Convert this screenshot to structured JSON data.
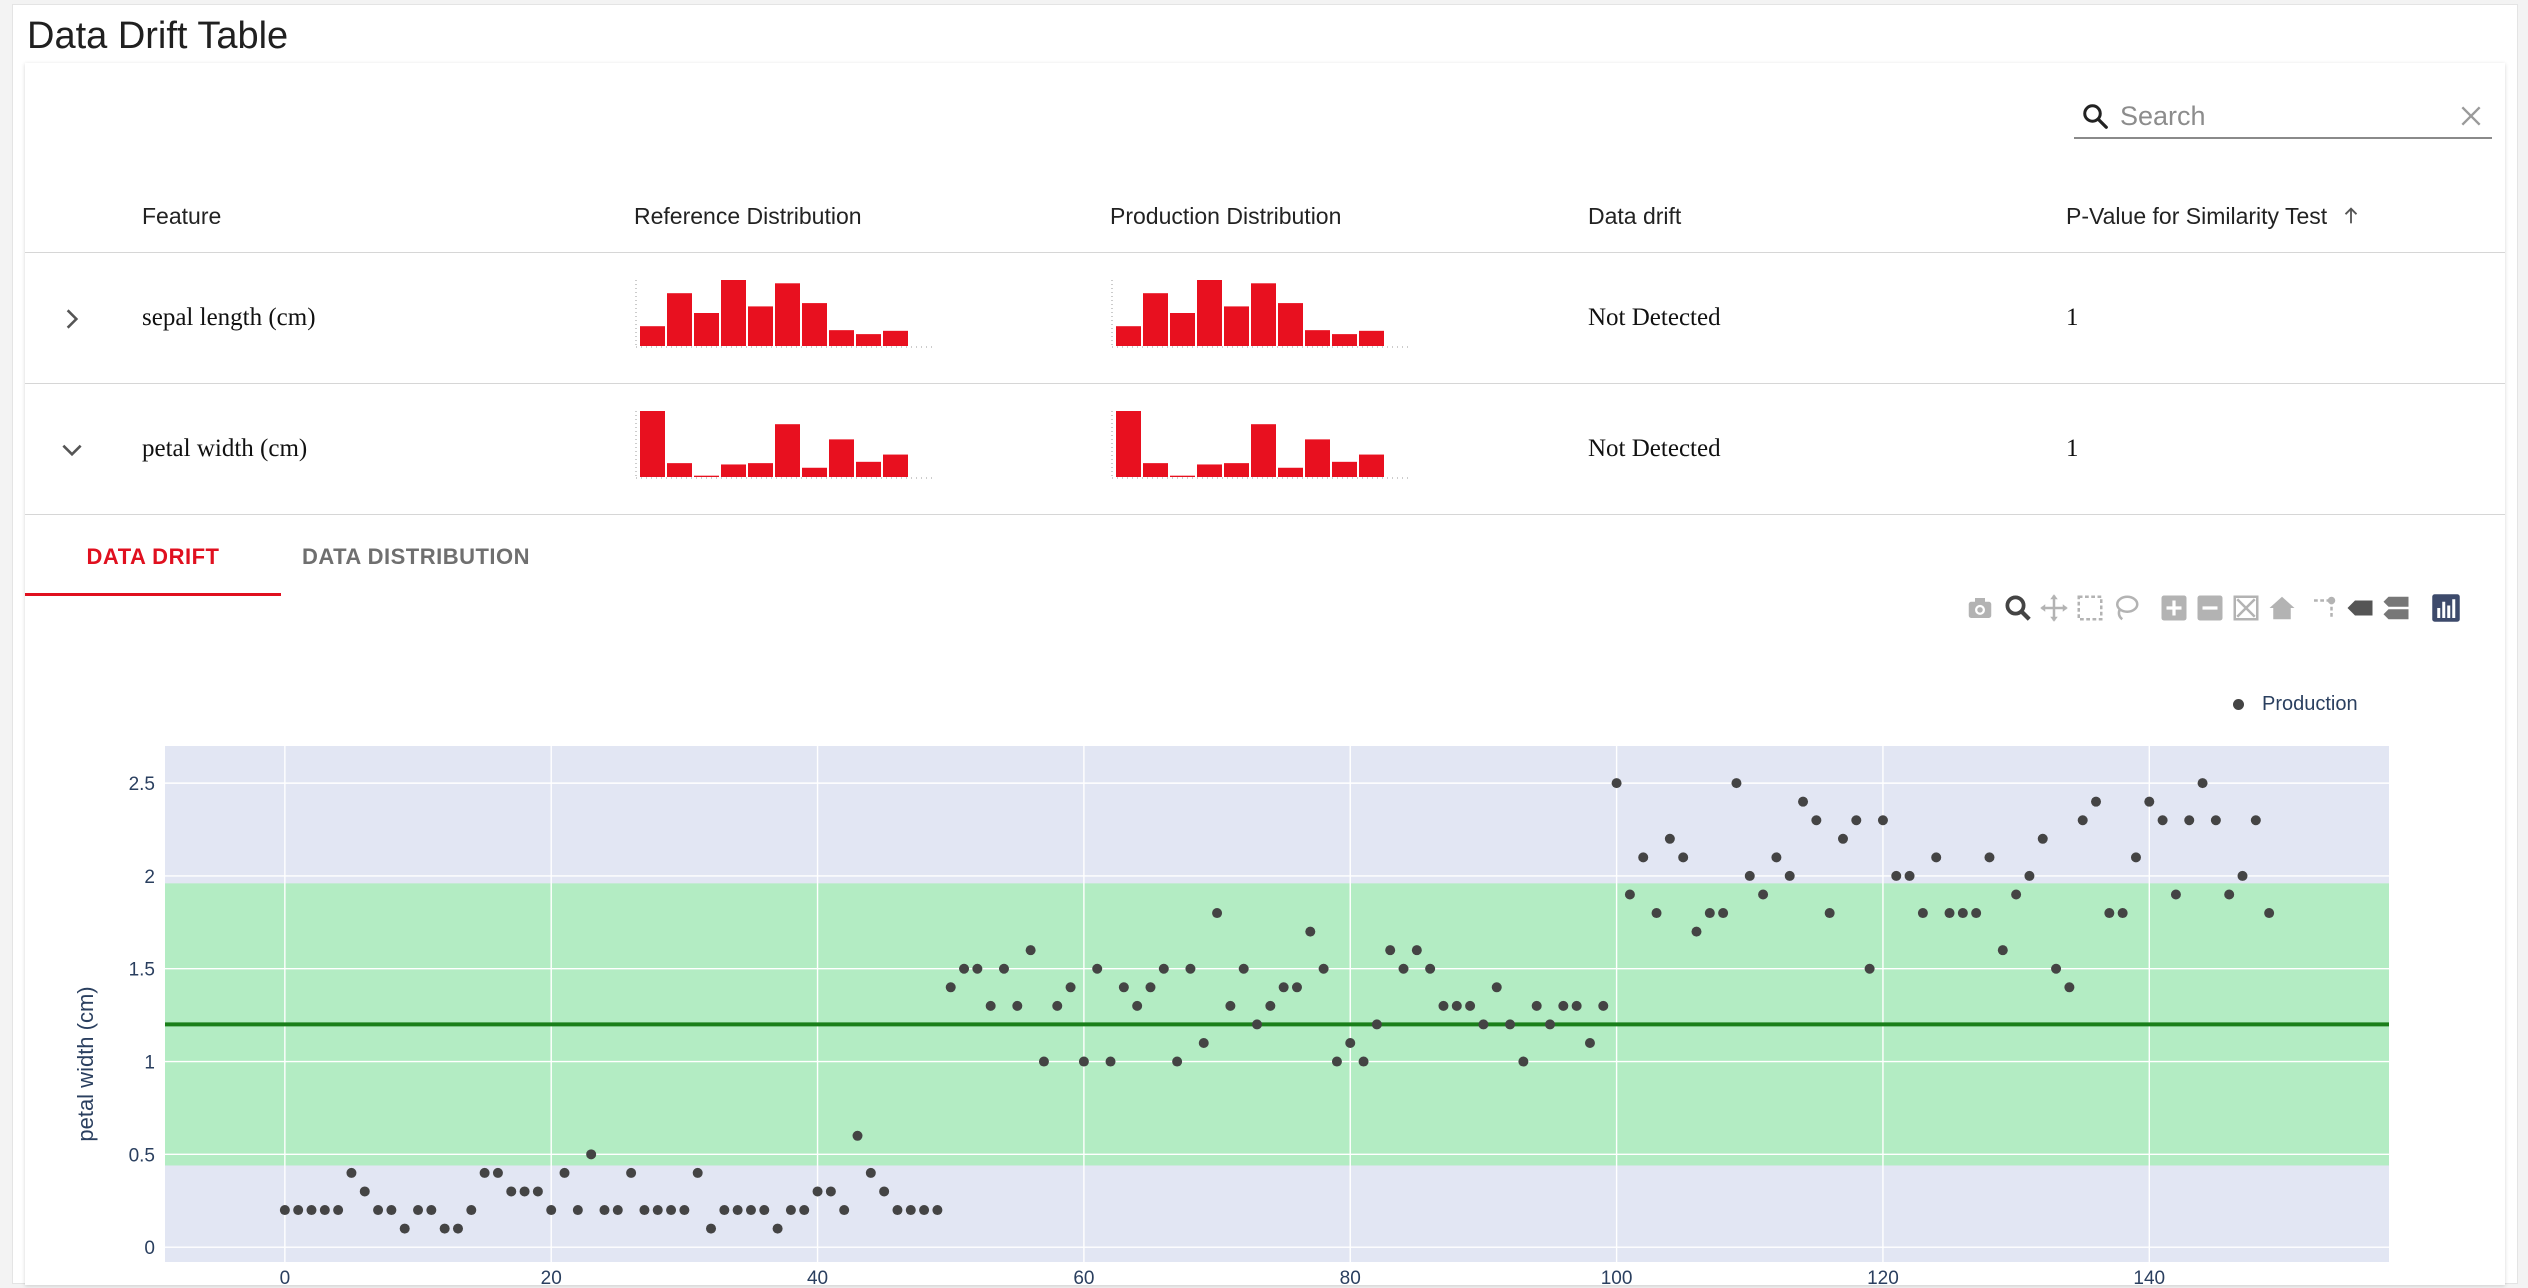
{
  "page": {
    "title": "Data Drift Table"
  },
  "search": {
    "placeholder": "Search"
  },
  "table": {
    "columns": [
      "Feature",
      "Reference Distribution",
      "Production Distribution",
      "Data drift",
      "P-Value for Similarity Test"
    ],
    "rows": [
      {
        "feature": "sepal length (cm)",
        "reference_hist": [
          3,
          8,
          5,
          10,
          6,
          9.5,
          6.5,
          2.4,
          1.8,
          2.3
        ],
        "production_hist": [
          3,
          8,
          5,
          10,
          6,
          9.5,
          6.5,
          2.4,
          1.8,
          2.3
        ],
        "data_drift": "Not Detected",
        "p_value": "1",
        "expanded": false
      },
      {
        "feature": "petal width (cm)",
        "reference_hist": [
          10,
          2.1,
          0.2,
          1.9,
          2.1,
          8,
          1.4,
          5.7,
          2.3,
          3.4
        ],
        "production_hist": [
          10,
          2.1,
          0.2,
          1.9,
          2.1,
          8,
          1.4,
          5.7,
          2.3,
          3.4
        ],
        "data_drift": "Not Detected",
        "p_value": "1",
        "expanded": true
      }
    ]
  },
  "tabs": [
    {
      "label": "DATA DRIFT",
      "active": true
    },
    {
      "label": "DATA DISTRIBUTION",
      "active": false
    }
  ],
  "modebar": [
    "camera-icon",
    "zoom-icon",
    "pan-icon",
    "box-select-icon",
    "lasso-select-icon",
    "zoom-in-icon",
    "zoom-out-icon",
    "autoscale-icon",
    "reset-axes-icon",
    "spike-lines-icon",
    "hover-closest-icon",
    "hover-compare-icon",
    "plotly-logo-icon"
  ],
  "colors": {
    "accent": "#e0101f",
    "bar": "#e8101f",
    "band": "#b3ecc3",
    "plot_bg": "#e2e6f3",
    "mean_line": "#1a7f1a",
    "point": "#444444"
  },
  "chart_data": {
    "type": "scatter",
    "ylabel": "petal width (cm)",
    "xlim": [
      -9,
      158
    ],
    "ylim": [
      -0.08,
      2.7
    ],
    "x_ticks": [
      0,
      20,
      40,
      60,
      80,
      100,
      120,
      140
    ],
    "y_ticks": [
      0,
      0.5,
      1,
      1.5,
      2,
      2.5
    ],
    "y_tick_labels": [
      "0",
      "0.5",
      "1",
      "1.5",
      "2",
      "2.5"
    ],
    "band": {
      "y0": 0.44,
      "y1": 1.96
    },
    "mean_line": 1.2,
    "legend": "Production",
    "series": [
      {
        "name": "Production",
        "values": [
          0.2,
          0.2,
          0.2,
          0.2,
          0.2,
          0.4,
          0.3,
          0.2,
          0.2,
          0.1,
          0.2,
          0.2,
          0.1,
          0.1,
          0.2,
          0.4,
          0.4,
          0.3,
          0.3,
          0.3,
          0.2,
          0.4,
          0.2,
          0.5,
          0.2,
          0.2,
          0.4,
          0.2,
          0.2,
          0.2,
          0.2,
          0.4,
          0.1,
          0.2,
          0.2,
          0.2,
          0.2,
          0.1,
          0.2,
          0.2,
          0.3,
          0.3,
          0.2,
          0.6,
          0.4,
          0.3,
          0.2,
          0.2,
          0.2,
          0.2,
          1.4,
          1.5,
          1.5,
          1.3,
          1.5,
          1.3,
          1.6,
          1.0,
          1.3,
          1.4,
          1.0,
          1.5,
          1.0,
          1.4,
          1.3,
          1.4,
          1.5,
          1.0,
          1.5,
          1.1,
          1.8,
          1.3,
          1.5,
          1.2,
          1.3,
          1.4,
          1.4,
          1.7,
          1.5,
          1.0,
          1.1,
          1.0,
          1.2,
          1.6,
          1.5,
          1.6,
          1.5,
          1.3,
          1.3,
          1.3,
          1.2,
          1.4,
          1.2,
          1.0,
          1.3,
          1.2,
          1.3,
          1.3,
          1.1,
          1.3,
          2.5,
          1.9,
          2.1,
          1.8,
          2.2,
          2.1,
          1.7,
          1.8,
          1.8,
          2.5,
          2.0,
          1.9,
          2.1,
          2.0,
          2.4,
          2.3,
          1.8,
          2.2,
          2.3,
          1.5,
          2.3,
          2.0,
          2.0,
          1.8,
          2.1,
          1.8,
          1.8,
          1.8,
          2.1,
          1.6,
          1.9,
          2.0,
          2.2,
          1.5,
          1.4,
          2.3,
          2.4,
          1.8,
          1.8,
          2.1,
          2.4,
          2.3,
          1.9,
          2.3,
          2.5,
          2.3,
          1.9,
          2.0,
          2.3,
          1.8
        ]
      }
    ]
  }
}
